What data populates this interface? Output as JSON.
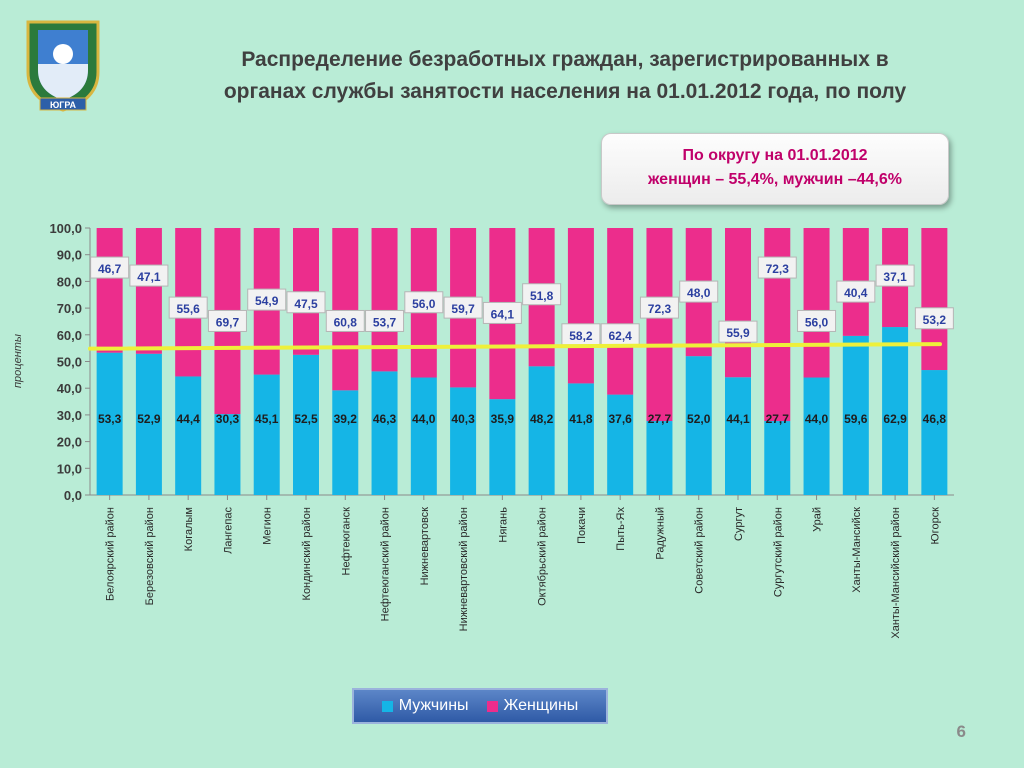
{
  "header": {
    "title_line1": "Распределение безработных граждан, зарегистрированных в",
    "title_line2": "органах службы занятости населения на 01.01.2012 года, по полу"
  },
  "emblem": {
    "text": "ЮГРА"
  },
  "callout": {
    "line1": "По округу на 01.01.2012",
    "line2": "женщин – 55,4%, мужчин –44,6%"
  },
  "page_number": "6",
  "colors": {
    "men": "#15b5e6",
    "women": "#ec2d8c",
    "reference_line": "#eef03a",
    "background": "#b9ecd6"
  },
  "chart_data": {
    "type": "bar",
    "stacked": true,
    "title": "",
    "ylabel": "проценты",
    "ylim": [
      0,
      100
    ],
    "yticks": [
      "0,0",
      "10,0",
      "20,0",
      "30,0",
      "40,0",
      "50,0",
      "60,0",
      "70,0",
      "80,0",
      "90,0",
      "100,0"
    ],
    "categories": [
      "Белоярский район",
      "Березовский район",
      "Когалым",
      "Лангепас",
      "Мегион",
      "Кондинский район",
      "Нефтеюганск",
      "Нефтеюганский район",
      "Нижневартовск",
      "Нижневартовский район",
      "Нягань",
      "Октябрьский район",
      "Покачи",
      "Пыть-Ях",
      "Радужный",
      "Советский район",
      "Сургут",
      "Сургутский район",
      "Урай",
      "Ханты-Мансийск",
      "Ханты-Мансийский район",
      "Югорск"
    ],
    "series": [
      {
        "name": "Мужчины",
        "values": [
          53.3,
          52.9,
          44.4,
          30.3,
          45.1,
          52.5,
          39.2,
          46.3,
          44.0,
          40.3,
          35.9,
          48.2,
          41.8,
          37.6,
          27.7,
          52.0,
          44.1,
          27.7,
          44.0,
          59.6,
          62.9,
          46.8
        ],
        "labels": [
          "53,3",
          "52,9",
          "44,4",
          "30,3",
          "45,1",
          "52,5",
          "39,2",
          "46,3",
          "44,0",
          "40,3",
          "35,9",
          "48,2",
          "41,8",
          "37,6",
          "27,7",
          "52,0",
          "44,1",
          "27,7",
          "44,0",
          "59,6",
          "62,9",
          "46,8"
        ]
      },
      {
        "name": "Женщины",
        "values": [
          46.7,
          47.1,
          55.6,
          69.7,
          54.9,
          47.5,
          60.8,
          53.7,
          56.0,
          59.7,
          64.1,
          51.8,
          58.2,
          62.4,
          72.3,
          48.0,
          55.9,
          72.3,
          56.0,
          40.4,
          37.1,
          53.2
        ],
        "labels": [
          "46,7",
          "47,1",
          "55,6",
          "69,7",
          "54,9",
          "47,5",
          "60,8",
          "53,7",
          "56,0",
          "59,7",
          "64,1",
          "51,8",
          "58,2",
          "62,4",
          "72,3",
          "48,0",
          "55,9",
          "72,3",
          "56,0",
          "40,4",
          "37,1",
          "53,2"
        ]
      }
    ],
    "women_label_position": [
      85,
      82,
      70,
      65,
      73,
      72,
      65,
      65,
      72,
      70,
      68,
      75,
      60,
      60,
      70,
      76,
      61,
      85,
      65,
      76,
      82,
      66
    ],
    "reference_line": {
      "from": 54.8,
      "to": 56.5
    },
    "legend": [
      "Мужчины",
      "Женщины"
    ]
  }
}
